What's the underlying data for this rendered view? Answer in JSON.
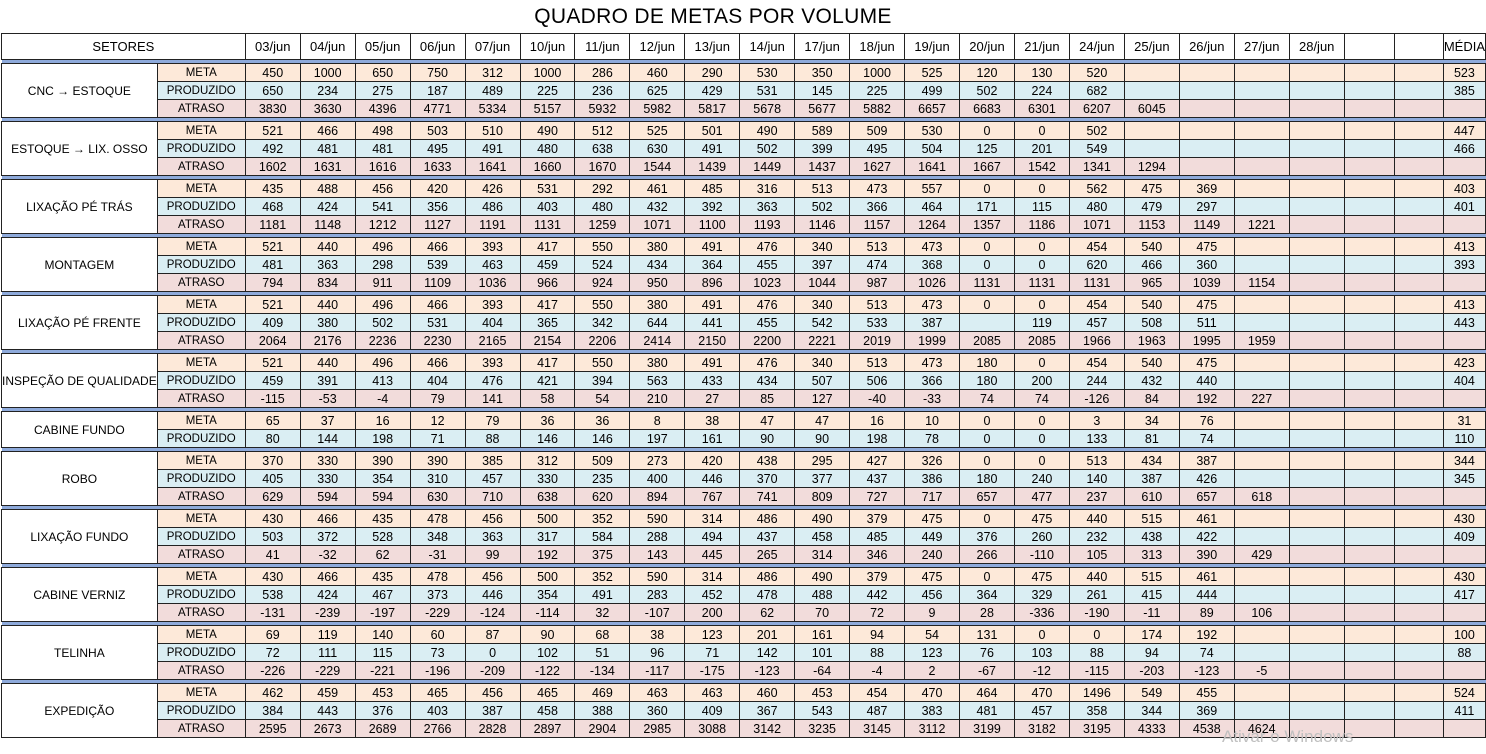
{
  "title": "QUADRO DE METAS POR VOLUME",
  "header": {
    "sector": "SETORES",
    "dates": [
      "03/jun",
      "04/jun",
      "05/jun",
      "06/jun",
      "07/jun",
      "10/jun",
      "11/jun",
      "12/jun",
      "13/jun",
      "14/jun",
      "17/jun",
      "18/jun",
      "19/jun",
      "20/jun",
      "21/jun",
      "24/jun",
      "25/jun",
      "26/jun",
      "27/jun",
      "28/jun",
      "",
      ""
    ],
    "average": "MÉDIA"
  },
  "labels": {
    "meta": "META",
    "produzido": "PRODUZIDO",
    "atraso": "ATRASO"
  },
  "sectors": [
    {
      "name": "CNC → ESTOQUE",
      "rows": [
        {
          "kind": "meta",
          "values": [
            "450",
            "1000",
            "650",
            "750",
            "312",
            "1000",
            "286",
            "460",
            "290",
            "530",
            "350",
            "1000",
            "525",
            "120",
            "130",
            "520",
            "",
            "",
            "",
            "",
            "",
            ""
          ],
          "avg": "523"
        },
        {
          "kind": "produzido",
          "values": [
            "650",
            "234",
            "275",
            "187",
            "489",
            "225",
            "236",
            "625",
            "429",
            "531",
            "145",
            "225",
            "499",
            "502",
            "224",
            "682",
            "",
            "",
            "",
            "",
            "",
            ""
          ],
          "avg": "385"
        },
        {
          "kind": "atraso",
          "values": [
            "3830",
            "3630",
            "4396",
            "4771",
            "5334",
            "5157",
            "5932",
            "5982",
            "5817",
            "5678",
            "5677",
            "5882",
            "6657",
            "6683",
            "6301",
            "6207",
            "6045",
            "",
            "",
            "",
            "",
            ""
          ],
          "avg": ""
        }
      ]
    },
    {
      "name": "ESTOQUE → LIX. OSSO",
      "rows": [
        {
          "kind": "meta",
          "values": [
            "521",
            "466",
            "498",
            "503",
            "510",
            "490",
            "512",
            "525",
            "501",
            "490",
            "589",
            "509",
            "530",
            "0",
            "0",
            "502",
            "",
            "",
            "",
            "",
            "",
            ""
          ],
          "avg": "447"
        },
        {
          "kind": "produzido",
          "values": [
            "492",
            "481",
            "481",
            "495",
            "491",
            "480",
            "638",
            "630",
            "491",
            "502",
            "399",
            "495",
            "504",
            "125",
            "201",
            "549",
            "",
            "",
            "",
            "",
            "",
            ""
          ],
          "avg": "466"
        },
        {
          "kind": "atraso",
          "values": [
            "1602",
            "1631",
            "1616",
            "1633",
            "1641",
            "1660",
            "1670",
            "1544",
            "1439",
            "1449",
            "1437",
            "1627",
            "1641",
            "1667",
            "1542",
            "1341",
            "1294",
            "",
            "",
            "",
            "",
            ""
          ],
          "avg": ""
        }
      ]
    },
    {
      "name": "LIXAÇÃO PÉ TRÁS",
      "rows": [
        {
          "kind": "meta",
          "values": [
            "435",
            "488",
            "456",
            "420",
            "426",
            "531",
            "292",
            "461",
            "485",
            "316",
            "513",
            "473",
            "557",
            "0",
            "0",
            "562",
            "475",
            "369",
            "",
            "",
            "",
            ""
          ],
          "avg": "403"
        },
        {
          "kind": "produzido",
          "values": [
            "468",
            "424",
            "541",
            "356",
            "486",
            "403",
            "480",
            "432",
            "392",
            "363",
            "502",
            "366",
            "464",
            "171",
            "115",
            "480",
            "479",
            "297",
            "",
            "",
            "",
            ""
          ],
          "avg": "401"
        },
        {
          "kind": "atraso",
          "values": [
            "1181",
            "1148",
            "1212",
            "1127",
            "1191",
            "1131",
            "1259",
            "1071",
            "1100",
            "1193",
            "1146",
            "1157",
            "1264",
            "1357",
            "1186",
            "1071",
            "1153",
            "1149",
            "1221",
            "",
            "",
            ""
          ],
          "avg": ""
        }
      ]
    },
    {
      "name": "MONTAGEM",
      "rows": [
        {
          "kind": "meta",
          "values": [
            "521",
            "440",
            "496",
            "466",
            "393",
            "417",
            "550",
            "380",
            "491",
            "476",
            "340",
            "513",
            "473",
            "0",
            "0",
            "454",
            "540",
            "475",
            "",
            "",
            "",
            ""
          ],
          "avg": "413"
        },
        {
          "kind": "produzido",
          "values": [
            "481",
            "363",
            "298",
            "539",
            "463",
            "459",
            "524",
            "434",
            "364",
            "455",
            "397",
            "474",
            "368",
            "0",
            "0",
            "620",
            "466",
            "360",
            "",
            "",
            "",
            ""
          ],
          "avg": "393"
        },
        {
          "kind": "atraso",
          "values": [
            "794",
            "834",
            "911",
            "1109",
            "1036",
            "966",
            "924",
            "950",
            "896",
            "1023",
            "1044",
            "987",
            "1026",
            "1131",
            "1131",
            "1131",
            "965",
            "1039",
            "1154",
            "",
            "",
            ""
          ],
          "avg": ""
        }
      ]
    },
    {
      "name": "LIXAÇÃO PÉ FRENTE",
      "rows": [
        {
          "kind": "meta",
          "values": [
            "521",
            "440",
            "496",
            "466",
            "393",
            "417",
            "550",
            "380",
            "491",
            "476",
            "340",
            "513",
            "473",
            "0",
            "0",
            "454",
            "540",
            "475",
            "",
            "",
            "",
            ""
          ],
          "avg": "413"
        },
        {
          "kind": "produzido",
          "values": [
            "409",
            "380",
            "502",
            "531",
            "404",
            "365",
            "342",
            "644",
            "441",
            "455",
            "542",
            "533",
            "387",
            "",
            "119",
            "457",
            "508",
            "511",
            "",
            "",
            "",
            ""
          ],
          "avg": "443"
        },
        {
          "kind": "atraso",
          "values": [
            "2064",
            "2176",
            "2236",
            "2230",
            "2165",
            "2154",
            "2206",
            "2414",
            "2150",
            "2200",
            "2221",
            "2019",
            "1999",
            "2085",
            "2085",
            "1966",
            "1963",
            "1995",
            "1959",
            "",
            "",
            ""
          ],
          "avg": ""
        }
      ]
    },
    {
      "name": "INSPEÇÃO DE QUALIDADE",
      "rows": [
        {
          "kind": "meta",
          "values": [
            "521",
            "440",
            "496",
            "466",
            "393",
            "417",
            "550",
            "380",
            "491",
            "476",
            "340",
            "513",
            "473",
            "180",
            "0",
            "454",
            "540",
            "475",
            "",
            "",
            "",
            ""
          ],
          "avg": "423"
        },
        {
          "kind": "produzido",
          "values": [
            "459",
            "391",
            "413",
            "404",
            "476",
            "421",
            "394",
            "563",
            "433",
            "434",
            "507",
            "506",
            "366",
            "180",
            "200",
            "244",
            "432",
            "440",
            "",
            "",
            "",
            ""
          ],
          "avg": "404"
        },
        {
          "kind": "atraso",
          "values": [
            "-115",
            "-53",
            "-4",
            "79",
            "141",
            "58",
            "54",
            "210",
            "27",
            "85",
            "127",
            "-40",
            "-33",
            "74",
            "74",
            "-126",
            "84",
            "192",
            "227",
            "",
            "",
            ""
          ],
          "avg": ""
        }
      ]
    },
    {
      "name": "CABINE FUNDO",
      "rows": [
        {
          "kind": "meta",
          "values": [
            "65",
            "37",
            "16",
            "12",
            "79",
            "36",
            "36",
            "8",
            "38",
            "47",
            "47",
            "16",
            "10",
            "0",
            "0",
            "3",
            "34",
            "76",
            "",
            "",
            "",
            ""
          ],
          "avg": "31"
        },
        {
          "kind": "produzido",
          "values": [
            "80",
            "144",
            "198",
            "71",
            "88",
            "146",
            "146",
            "197",
            "161",
            "90",
            "90",
            "198",
            "78",
            "0",
            "0",
            "133",
            "81",
            "74",
            "",
            "",
            "",
            ""
          ],
          "avg": "110"
        }
      ]
    },
    {
      "name": "ROBO",
      "rows": [
        {
          "kind": "meta",
          "values": [
            "370",
            "330",
            "390",
            "390",
            "385",
            "312",
            "509",
            "273",
            "420",
            "438",
            "295",
            "427",
            "326",
            "0",
            "0",
            "513",
            "434",
            "387",
            "",
            "",
            "",
            ""
          ],
          "avg": "344"
        },
        {
          "kind": "produzido",
          "values": [
            "405",
            "330",
            "354",
            "310",
            "457",
            "330",
            "235",
            "400",
            "446",
            "370",
            "377",
            "437",
            "386",
            "180",
            "240",
            "140",
            "387",
            "426",
            "",
            "",
            "",
            ""
          ],
          "avg": "345"
        },
        {
          "kind": "atraso",
          "values": [
            "629",
            "594",
            "594",
            "630",
            "710",
            "638",
            "620",
            "894",
            "767",
            "741",
            "809",
            "727",
            "717",
            "657",
            "477",
            "237",
            "610",
            "657",
            "618",
            "",
            "",
            ""
          ],
          "avg": ""
        }
      ]
    },
    {
      "name": "LIXAÇÃO FUNDO",
      "rows": [
        {
          "kind": "meta",
          "values": [
            "430",
            "466",
            "435",
            "478",
            "456",
            "500",
            "352",
            "590",
            "314",
            "486",
            "490",
            "379",
            "475",
            "0",
            "475",
            "440",
            "515",
            "461",
            "",
            "",
            "",
            ""
          ],
          "avg": "430"
        },
        {
          "kind": "produzido",
          "values": [
            "503",
            "372",
            "528",
            "348",
            "363",
            "317",
            "584",
            "288",
            "494",
            "437",
            "458",
            "485",
            "449",
            "376",
            "260",
            "232",
            "438",
            "422",
            "",
            "",
            "",
            ""
          ],
          "avg": "409"
        },
        {
          "kind": "atraso",
          "values": [
            "41",
            "-32",
            "62",
            "-31",
            "99",
            "192",
            "375",
            "143",
            "445",
            "265",
            "314",
            "346",
            "240",
            "266",
            "-110",
            "105",
            "313",
            "390",
            "429",
            "",
            "",
            ""
          ],
          "avg": ""
        }
      ]
    },
    {
      "name": "CABINE VERNIZ",
      "rows": [
        {
          "kind": "meta",
          "values": [
            "430",
            "466",
            "435",
            "478",
            "456",
            "500",
            "352",
            "590",
            "314",
            "486",
            "490",
            "379",
            "475",
            "0",
            "475",
            "440",
            "515",
            "461",
            "",
            "",
            "",
            ""
          ],
          "avg": "430"
        },
        {
          "kind": "produzido",
          "values": [
            "538",
            "424",
            "467",
            "373",
            "446",
            "354",
            "491",
            "283",
            "452",
            "478",
            "488",
            "442",
            "456",
            "364",
            "329",
            "261",
            "415",
            "444",
            "",
            "",
            "",
            ""
          ],
          "avg": "417"
        },
        {
          "kind": "atraso",
          "values": [
            "-131",
            "-239",
            "-197",
            "-229",
            "-124",
            "-114",
            "32",
            "-107",
            "200",
            "62",
            "70",
            "72",
            "9",
            "28",
            "-336",
            "-190",
            "-11",
            "89",
            "106",
            "",
            "",
            ""
          ],
          "avg": ""
        }
      ]
    },
    {
      "name": "TELINHA",
      "rows": [
        {
          "kind": "meta",
          "values": [
            "69",
            "119",
            "140",
            "60",
            "87",
            "90",
            "68",
            "38",
            "123",
            "201",
            "161",
            "94",
            "54",
            "131",
            "0",
            "0",
            "174",
            "192",
            "",
            "",
            "",
            ""
          ],
          "avg": "100"
        },
        {
          "kind": "produzido",
          "values": [
            "72",
            "111",
            "115",
            "73",
            "0",
            "102",
            "51",
            "96",
            "71",
            "142",
            "101",
            "88",
            "123",
            "76",
            "103",
            "88",
            "94",
            "74",
            "",
            "",
            "",
            ""
          ],
          "avg": "88"
        },
        {
          "kind": "atraso",
          "values": [
            "-226",
            "-229",
            "-221",
            "-196",
            "-209",
            "-122",
            "-134",
            "-117",
            "-175",
            "-123",
            "-64",
            "-4",
            "2",
            "-67",
            "-12",
            "-115",
            "-203",
            "-123",
            "-5",
            "",
            "",
            ""
          ],
          "avg": ""
        }
      ]
    },
    {
      "name": "EXPEDIÇÃO",
      "rows": [
        {
          "kind": "meta",
          "values": [
            "462",
            "459",
            "453",
            "465",
            "456",
            "465",
            "469",
            "463",
            "463",
            "460",
            "453",
            "454",
            "470",
            "464",
            "470",
            "1496",
            "549",
            "455",
            "",
            "",
            "",
            ""
          ],
          "avg": "524"
        },
        {
          "kind": "produzido",
          "values": [
            "384",
            "443",
            "376",
            "403",
            "387",
            "458",
            "388",
            "360",
            "409",
            "367",
            "543",
            "487",
            "383",
            "481",
            "457",
            "358",
            "344",
            "369",
            "",
            "",
            "",
            ""
          ],
          "avg": "411"
        },
        {
          "kind": "atraso",
          "values": [
            "2595",
            "2673",
            "2689",
            "2766",
            "2828",
            "2897",
            "2904",
            "2985",
            "3088",
            "3142",
            "3235",
            "3145",
            "3112",
            "3199",
            "3182",
            "3195",
            "4333",
            "4538",
            "4624",
            "",
            "",
            ""
          ],
          "avg": ""
        }
      ]
    }
  ],
  "watermark": "Ativar o Windows",
  "colors": {
    "meta": "#fde9d9",
    "produzido": "#daeef3",
    "atraso": "#f2dcdb",
    "separator": "#8eaadb"
  }
}
